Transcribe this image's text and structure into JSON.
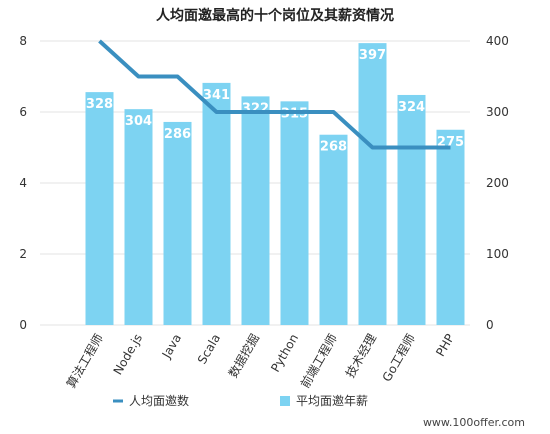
{
  "chart_data": {
    "type": "bar+line",
    "title": "人均面邀最高的十个岗位及其薪资情况",
    "categories": [
      "算法工程师",
      "Node.js",
      "Java",
      "Scala",
      "数据挖掘",
      "Python",
      "前端工程师",
      "技术经理",
      "Go工程师",
      "PHP"
    ],
    "series": [
      {
        "name": "平均面邀年薪",
        "type": "bar",
        "axis": "right",
        "values": [
          328,
          304,
          286,
          341,
          322,
          315,
          268,
          397,
          324,
          275
        ],
        "color": "#7dd3f2"
      },
      {
        "name": "人均面邀数",
        "type": "line",
        "axis": "left",
        "values": [
          8,
          7,
          7,
          6,
          6,
          6,
          6,
          5,
          5,
          5
        ],
        "color": "#3a8fc0"
      }
    ],
    "y_left": {
      "ylim": [
        0,
        8
      ],
      "ticks": [
        "0",
        "2",
        "4",
        "6",
        "8"
      ]
    },
    "y_right": {
      "ylim": [
        0,
        400
      ],
      "ticks": [
        "0",
        "100",
        "200",
        "300",
        "400"
      ]
    },
    "grid": true,
    "legend_position": "bottom"
  },
  "watermark": "www.100offer.com"
}
